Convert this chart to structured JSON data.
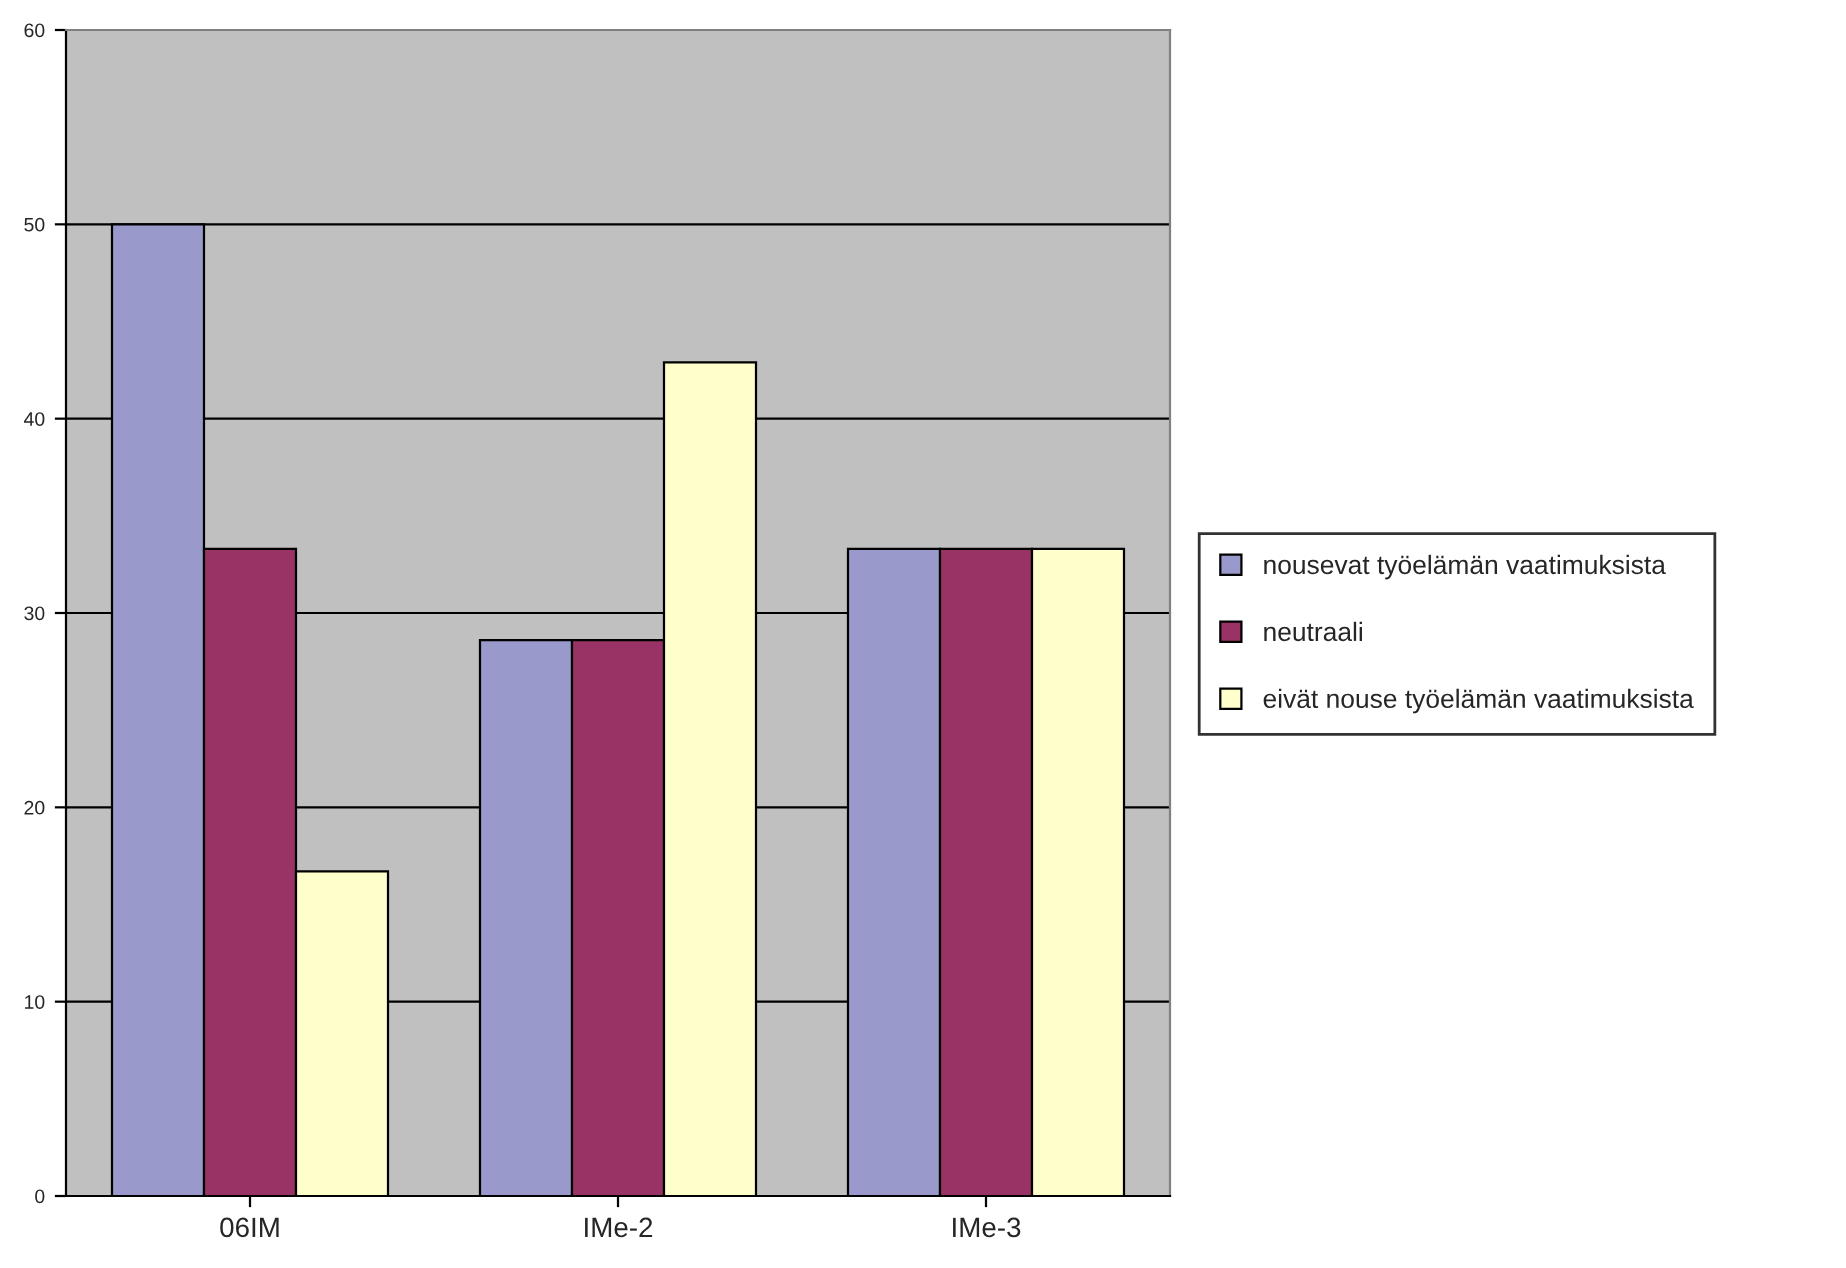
{
  "chart_data": {
    "type": "bar",
    "categories": [
      "06IM",
      "IMe-2",
      "IMe-3"
    ],
    "series": [
      {
        "name": "nousevat työelämän vaatimuksista",
        "color": "#9999cc",
        "values": [
          50,
          28.6,
          33.3
        ]
      },
      {
        "name": "neutraali",
        "color": "#993366",
        "values": [
          33.3,
          28.6,
          33.3
        ]
      },
      {
        "name": "eivät nouse työelämän vaatimuksista",
        "color": "#ffffcc",
        "values": [
          16.7,
          42.9,
          33.3
        ]
      }
    ],
    "ylim": [
      0,
      60
    ],
    "yticks": [
      0,
      10,
      20,
      30,
      40,
      50,
      60
    ],
    "grid": "y",
    "legend": "right"
  }
}
